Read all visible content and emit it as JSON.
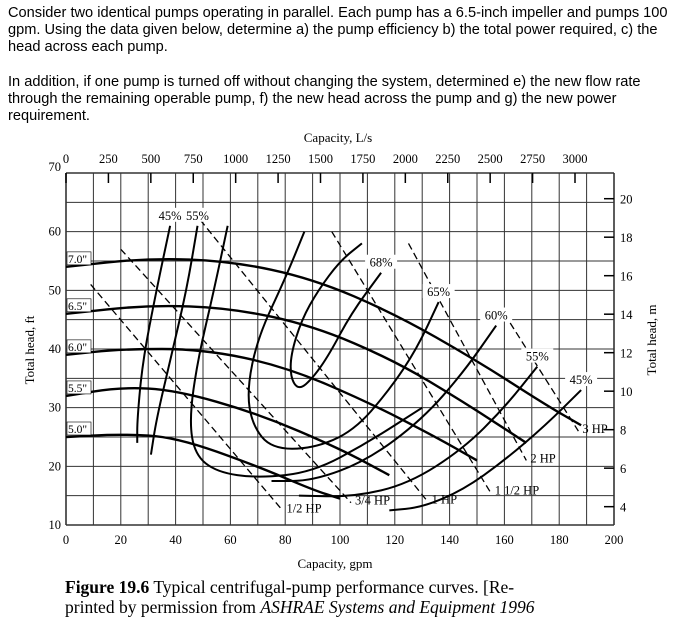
{
  "question": {
    "paragraph1": "Consider two identical pumps operating in parallel.  Each pump has a 6.5-inch impeller and pumps 100 gpm. Using the data given below, determine a) the pump efficiency b) the total power required, c) the head across each pump.",
    "paragraph2": "In addition, if one pump is turned off without changing the system, determined e) the new flow rate through the remaining operable pump, f) the new head across the pump and g) the new power requirement."
  },
  "chart_data": {
    "type": "line",
    "xlabel": "Capacity, gpm",
    "x2label": "Capacity, L/s",
    "ylabel": "Total head, ft",
    "y2label": "Total head, m",
    "xlim": [
      0,
      200
    ],
    "ylim": [
      10,
      70
    ],
    "x2lim": [
      0,
      3000
    ],
    "grid": true,
    "x_ticks": [
      "0",
      "20",
      "40",
      "60",
      "80",
      "100",
      "120",
      "140",
      "160",
      "180",
      "200"
    ],
    "y_ticks": [
      "10",
      "20",
      "30",
      "40",
      "50",
      "60",
      "70"
    ],
    "x2_ticks": [
      "0",
      "250",
      "500",
      "750",
      "1000",
      "1250",
      "1500",
      "1750",
      "2000",
      "2250",
      "2500",
      "2750",
      "3000"
    ],
    "y2_ticks": [
      "4",
      "6",
      "8",
      "10",
      "12",
      "14",
      "16",
      "18",
      "20"
    ],
    "impeller_curves": [
      {
        "name": "7.0\"",
        "points": [
          [
            0,
            54
          ],
          [
            30,
            55.5
          ],
          [
            60,
            55
          ],
          [
            90,
            52
          ],
          [
            120,
            46
          ],
          [
            150,
            38
          ],
          [
            175,
            30.5
          ],
          [
            188,
            27
          ]
        ]
      },
      {
        "name": "6.5\"",
        "points": [
          [
            0,
            46
          ],
          [
            30,
            47.5
          ],
          [
            60,
            47
          ],
          [
            90,
            44
          ],
          [
            120,
            38
          ],
          [
            145,
            31
          ],
          [
            168,
            24
          ]
        ]
      },
      {
        "name": "6.0\"",
        "points": [
          [
            0,
            39
          ],
          [
            20,
            40
          ],
          [
            50,
            40
          ],
          [
            80,
            37
          ],
          [
            110,
            31
          ],
          [
            135,
            25
          ],
          [
            150,
            21
          ]
        ]
      },
      {
        "name": "5.5\"",
        "points": [
          [
            0,
            32
          ],
          [
            20,
            33.5
          ],
          [
            40,
            33
          ],
          [
            70,
            29
          ],
          [
            100,
            23
          ],
          [
            118,
            18.5
          ]
        ]
      },
      {
        "name": "5.0\"",
        "points": [
          [
            0,
            25
          ],
          [
            20,
            25.5
          ],
          [
            40,
            25
          ],
          [
            70,
            20
          ],
          [
            90,
            16
          ],
          [
            100,
            14.5
          ]
        ]
      }
    ],
    "efficiency_curves": [
      {
        "name": "45%",
        "points": [
          [
            38,
            61
          ],
          [
            33,
            50
          ],
          [
            28,
            38
          ],
          [
            26,
            28
          ],
          [
            26,
            24
          ]
        ]
      },
      {
        "name": "55%",
        "points": [
          [
            48,
            61
          ],
          [
            44,
            50
          ],
          [
            38,
            38
          ],
          [
            33,
            28
          ],
          [
            31,
            22
          ]
        ]
      },
      {
        "name": "",
        "points": [
          [
            59,
            61
          ],
          [
            54,
            50
          ],
          [
            48,
            38
          ],
          [
            45,
            28
          ],
          [
            47,
            22
          ],
          [
            55,
            19
          ],
          [
            70,
            18
          ],
          [
            90,
            19
          ],
          [
            110,
            24
          ],
          [
            130,
            30
          ]
        ]
      },
      {
        "name": "68%",
        "points": [
          [
            115,
            53
          ],
          [
            104,
            46
          ],
          [
            96,
            39
          ],
          [
            90,
            35
          ],
          [
            85,
            33
          ],
          [
            82,
            35
          ],
          [
            82,
            39
          ],
          [
            86,
            45
          ],
          [
            92,
            50
          ],
          [
            100,
            55
          ],
          [
            108,
            58
          ]
        ]
      },
      {
        "name": "65%",
        "points": [
          [
            136,
            48
          ],
          [
            128,
            40
          ],
          [
            118,
            33
          ],
          [
            105,
            26
          ],
          [
            90,
            23
          ],
          [
            75,
            23
          ],
          [
            68,
            27
          ],
          [
            66,
            33
          ],
          [
            70,
            42
          ],
          [
            80,
            52
          ],
          [
            87,
            60
          ]
        ]
      },
      {
        "name": "60%",
        "points": [
          [
            157,
            44
          ],
          [
            145,
            36
          ],
          [
            130,
            28
          ],
          [
            110,
            21
          ],
          [
            90,
            17.5
          ],
          [
            75,
            17.5
          ]
        ]
      },
      {
        "name": "55%",
        "points": [
          [
            172,
            37
          ],
          [
            160,
            30
          ],
          [
            145,
            23
          ],
          [
            125,
            17
          ],
          [
            105,
            14.8
          ],
          [
            85,
            15
          ]
        ]
      },
      {
        "name": "45%",
        "points": [
          [
            188,
            33
          ],
          [
            175,
            27
          ],
          [
            160,
            21
          ],
          [
            145,
            16
          ],
          [
            130,
            13
          ],
          [
            118,
            12.5
          ]
        ]
      }
    ],
    "power_lines": [
      {
        "name": "1/2 HP",
        "points": [
          [
            9,
            51
          ],
          [
            79,
            12.5
          ]
        ]
      },
      {
        "name": "3/4 HP",
        "points": [
          [
            20,
            57
          ],
          [
            104,
            13.8
          ]
        ]
      },
      {
        "name": "1 HP",
        "points": [
          [
            49,
            62
          ],
          [
            132,
            14
          ]
        ]
      },
      {
        "name": "1 1/2 HP",
        "points": [
          [
            97,
            60
          ],
          [
            155,
            15.5
          ]
        ]
      },
      {
        "name": "2 HP",
        "points": [
          [
            125,
            58
          ],
          [
            168,
            21
          ]
        ]
      },
      {
        "name": "3 HP",
        "points": [
          [
            160,
            46
          ],
          [
            187,
            26
          ]
        ]
      }
    ],
    "label_gpm_header": "Capacity, L/s"
  },
  "caption": {
    "label": "Figure 19.6",
    "text_a": " Typical centrifugal-pump performance curves. [Re-",
    "text_b": "printed by permission from ",
    "italic": "ASHRAE Systems and Equipment 1996"
  }
}
